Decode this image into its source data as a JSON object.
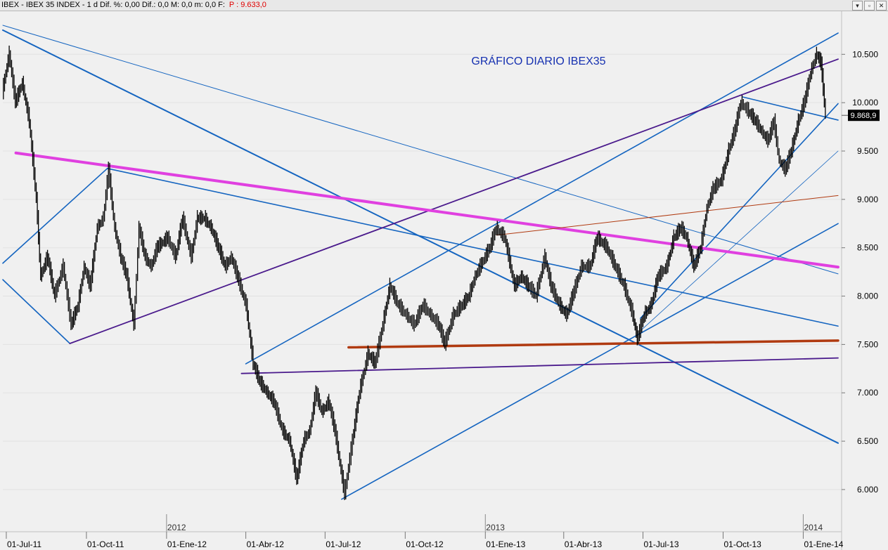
{
  "window": {
    "symbol_text": "IBEX - IBEX 35 INDEX - 1 d Dif. %: 0,00  Dif.: 0,0  M: 0,0  m: 0,0  F:",
    "price_text": "P : 9.633,0",
    "buttons": [
      "▾",
      "▫",
      "✕"
    ]
  },
  "chart_data": {
    "type": "candlestick",
    "title": "GRÁFICO DIARIO IBEX35",
    "instrument": "IBEX 35 INDEX",
    "timeframe": "1 d",
    "last_value": 9868.9,
    "last_value_label": "9.868,9",
    "xlim": [
      "2011-06-27",
      "2014-02-10"
    ],
    "ylim": [
      5600,
      10800
    ],
    "yticks": [
      {
        "value": 6000,
        "label": "6.000"
      },
      {
        "value": 6500,
        "label": "6.500"
      },
      {
        "value": 7000,
        "label": "7.000"
      },
      {
        "value": 7500,
        "label": "7.500"
      },
      {
        "value": 8000,
        "label": "8.000"
      },
      {
        "value": 8500,
        "label": "8.500"
      },
      {
        "value": 9000,
        "label": "9.000"
      },
      {
        "value": 9500,
        "label": "9.500"
      },
      {
        "value": 10000,
        "label": "10.000"
      },
      {
        "value": 10500,
        "label": "10.500"
      }
    ],
    "xticks": [
      {
        "date": "2011-07-01",
        "label": "01-Jul-11"
      },
      {
        "date": "2011-10-01",
        "label": "01-Oct-11"
      },
      {
        "date": "2012-01-01",
        "label": "01-Ene-12"
      },
      {
        "date": "2012-04-01",
        "label": "01-Abr-12"
      },
      {
        "date": "2012-07-01",
        "label": "01-Jul-12"
      },
      {
        "date": "2012-10-01",
        "label": "01-Oct-12"
      },
      {
        "date": "2013-01-01",
        "label": "01-Ene-13"
      },
      {
        "date": "2013-04-01",
        "label": "01-Abr-13"
      },
      {
        "date": "2013-07-01",
        "label": "01-Jul-13"
      },
      {
        "date": "2013-10-01",
        "label": "01-Oct-13"
      },
      {
        "date": "2014-01-01",
        "label": "01-Ene-14"
      }
    ],
    "year_markers": [
      {
        "date": "2012-01-01",
        "label": "2012"
      },
      {
        "date": "2013-01-01",
        "label": "2013"
      },
      {
        "date": "2014-01-01",
        "label": "2014"
      }
    ],
    "price_path": [
      [
        "2011-06-27",
        10100
      ],
      [
        "2011-07-05",
        10500
      ],
      [
        "2011-07-12",
        10000
      ],
      [
        "2011-07-20",
        10200
      ],
      [
        "2011-07-28",
        9800
      ],
      [
        "2011-08-05",
        9000
      ],
      [
        "2011-08-10",
        8200
      ],
      [
        "2011-08-18",
        8400
      ],
      [
        "2011-08-26",
        8000
      ],
      [
        "2011-09-05",
        8300
      ],
      [
        "2011-09-14",
        7700
      ],
      [
        "2011-09-22",
        7900
      ],
      [
        "2011-09-29",
        8300
      ],
      [
        "2011-10-06",
        8100
      ],
      [
        "2011-10-14",
        8700
      ],
      [
        "2011-10-21",
        8800
      ],
      [
        "2011-10-27",
        9300
      ],
      [
        "2011-11-03",
        8700
      ],
      [
        "2011-11-10",
        8400
      ],
      [
        "2011-11-17",
        8200
      ],
      [
        "2011-11-25",
        7700
      ],
      [
        "2011-12-01",
        8700
      ],
      [
        "2011-12-08",
        8400
      ],
      [
        "2011-12-15",
        8300
      ],
      [
        "2011-12-22",
        8500
      ],
      [
        "2012-01-03",
        8600
      ],
      [
        "2012-01-12",
        8400
      ],
      [
        "2012-01-20",
        8800
      ],
      [
        "2012-01-30",
        8400
      ],
      [
        "2012-02-06",
        8800
      ],
      [
        "2012-02-14",
        8800
      ],
      [
        "2012-02-22",
        8700
      ],
      [
        "2012-03-01",
        8500
      ],
      [
        "2012-03-09",
        8300
      ],
      [
        "2012-03-16",
        8400
      ],
      [
        "2012-03-23",
        8200
      ],
      [
        "2012-04-02",
        7900
      ],
      [
        "2012-04-10",
        7300
      ],
      [
        "2012-04-18",
        7100
      ],
      [
        "2012-04-26",
        7000
      ],
      [
        "2012-05-04",
        6900
      ],
      [
        "2012-05-14",
        6600
      ],
      [
        "2012-05-22",
        6500
      ],
      [
        "2012-05-30",
        6100
      ],
      [
        "2012-06-07",
        6500
      ],
      [
        "2012-06-14",
        6600
      ],
      [
        "2012-06-21",
        7000
      ],
      [
        "2012-06-28",
        6800
      ],
      [
        "2012-07-06",
        6900
      ],
      [
        "2012-07-13",
        6600
      ],
      [
        "2012-07-24",
        5950
      ],
      [
        "2012-08-02",
        6500
      ],
      [
        "2012-08-10",
        7000
      ],
      [
        "2012-08-20",
        7400
      ],
      [
        "2012-08-28",
        7300
      ],
      [
        "2012-09-06",
        7700
      ],
      [
        "2012-09-14",
        8100
      ],
      [
        "2012-09-24",
        7900
      ],
      [
        "2012-10-03",
        7800
      ],
      [
        "2012-10-12",
        7700
      ],
      [
        "2012-10-22",
        7900
      ],
      [
        "2012-10-31",
        7800
      ],
      [
        "2012-11-09",
        7700
      ],
      [
        "2012-11-16",
        7500
      ],
      [
        "2012-11-26",
        7800
      ],
      [
        "2012-12-06",
        7900
      ],
      [
        "2012-12-14",
        8000
      ],
      [
        "2012-12-21",
        8200
      ],
      [
        "2013-01-07",
        8500
      ],
      [
        "2013-01-14",
        8700
      ],
      [
        "2013-01-24",
        8600
      ],
      [
        "2013-02-04",
        8100
      ],
      [
        "2013-02-12",
        8200
      ],
      [
        "2013-02-20",
        8100
      ],
      [
        "2013-03-01",
        8000
      ],
      [
        "2013-03-11",
        8400
      ],
      [
        "2013-03-18",
        8100
      ],
      [
        "2013-03-28",
        7900
      ],
      [
        "2013-04-05",
        7800
      ],
      [
        "2013-04-12",
        8000
      ],
      [
        "2013-04-22",
        8300
      ],
      [
        "2013-05-02",
        8300
      ],
      [
        "2013-05-10",
        8600
      ],
      [
        "2013-05-21",
        8500
      ],
      [
        "2013-05-31",
        8300
      ],
      [
        "2013-06-10",
        8100
      ],
      [
        "2013-06-20",
        7800
      ],
      [
        "2013-06-25",
        7550
      ],
      [
        "2013-07-03",
        7800
      ],
      [
        "2013-07-11",
        7900
      ],
      [
        "2013-07-19",
        8200
      ],
      [
        "2013-07-29",
        8300
      ],
      [
        "2013-08-06",
        8600
      ],
      [
        "2013-08-14",
        8700
      ],
      [
        "2013-08-21",
        8600
      ],
      [
        "2013-08-29",
        8300
      ],
      [
        "2013-09-06",
        8500
      ],
      [
        "2013-09-13",
        8900
      ],
      [
        "2013-09-20",
        9100
      ],
      [
        "2013-09-30",
        9200
      ],
      [
        "2013-10-08",
        9500
      ],
      [
        "2013-10-15",
        9700
      ],
      [
        "2013-10-22",
        10000
      ],
      [
        "2013-10-31",
        9900
      ],
      [
        "2013-11-08",
        9800
      ],
      [
        "2013-11-15",
        9700
      ],
      [
        "2013-11-22",
        9600
      ],
      [
        "2013-11-29",
        9800
      ],
      [
        "2013-12-05",
        9400
      ],
      [
        "2013-12-12",
        9300
      ],
      [
        "2013-12-19",
        9500
      ],
      [
        "2013-12-27",
        9800
      ],
      [
        "2014-01-03",
        10000
      ],
      [
        "2014-01-10",
        10300
      ],
      [
        "2014-01-17",
        10500
      ],
      [
        "2014-01-22",
        10400
      ],
      [
        "2014-01-27",
        9870
      ]
    ],
    "trendlines": [
      {
        "color": "#1565c0",
        "width": 2,
        "points": [
          [
            "2011-06-27",
            10750
          ],
          [
            "2014-02-10",
            6480
          ]
        ]
      },
      {
        "color": "#1565c0",
        "width": 1,
        "points": [
          [
            "2011-06-27",
            10800
          ],
          [
            "2014-02-10",
            8230
          ]
        ]
      },
      {
        "color": "#1565c0",
        "width": 1.6,
        "points": [
          [
            "2011-06-27",
            8340
          ],
          [
            "2011-10-25",
            9320
          ]
        ]
      },
      {
        "color": "#1565c0",
        "width": 1.6,
        "points": [
          [
            "2011-06-27",
            8170
          ],
          [
            "2011-09-12",
            7510
          ]
        ]
      },
      {
        "color": "#1565c0",
        "width": 1.6,
        "points": [
          [
            "2011-10-25",
            9320
          ],
          [
            "2014-02-10",
            7690
          ]
        ]
      },
      {
        "color": "#1565c0",
        "width": 1.6,
        "points": [
          [
            "2012-04-01",
            7300
          ],
          [
            "2014-02-10",
            10720
          ]
        ]
      },
      {
        "color": "#1565c0",
        "width": 1.6,
        "points": [
          [
            "2012-07-20",
            5900
          ],
          [
            "2014-02-10",
            8750
          ]
        ]
      },
      {
        "color": "#1565c0",
        "width": 1.6,
        "points": [
          [
            "2013-06-28",
            7770
          ],
          [
            "2014-02-10",
            9990
          ]
        ]
      },
      {
        "color": "#1565c0",
        "width": 0.8,
        "points": [
          [
            "2013-06-28",
            7640
          ],
          [
            "2014-02-10",
            9500
          ]
        ]
      },
      {
        "color": "#1565c0",
        "width": 1.6,
        "points": [
          [
            "2013-10-23",
            10060
          ],
          [
            "2014-02-10",
            9820
          ]
        ]
      },
      {
        "color": "#4a1a8c",
        "width": 1.8,
        "points": [
          [
            "2011-09-12",
            7510
          ],
          [
            "2014-02-10",
            10450
          ]
        ]
      },
      {
        "color": "#4a1a8c",
        "width": 1.8,
        "points": [
          [
            "2012-03-27",
            7200
          ],
          [
            "2014-02-10",
            7360
          ]
        ]
      },
      {
        "color": "#e040e0",
        "width": 4,
        "points": [
          [
            "2011-07-12",
            9480
          ],
          [
            "2014-02-10",
            8300
          ]
        ]
      },
      {
        "color": "#b03a10",
        "width": 3.5,
        "points": [
          [
            "2012-07-28",
            7470
          ],
          [
            "2014-02-10",
            7540
          ]
        ]
      },
      {
        "color": "#b03a10",
        "width": 1,
        "points": [
          [
            "2013-01-14",
            8630
          ],
          [
            "2014-02-10",
            9040
          ]
        ]
      }
    ]
  }
}
